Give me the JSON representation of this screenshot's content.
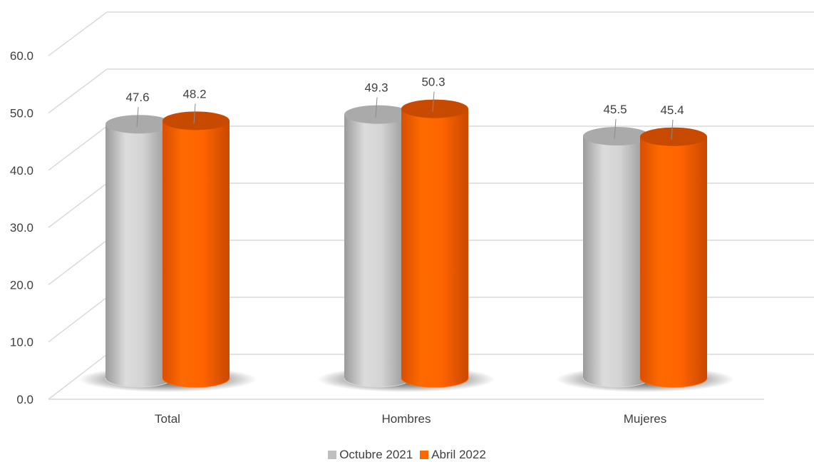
{
  "chart_data": {
    "type": "bar",
    "categories": [
      "Total",
      "Hombres",
      "Mujeres"
    ],
    "series": [
      {
        "name": "Octubre 2021",
        "values": [
          47.6,
          49.3,
          45.5
        ],
        "color": "#BFBFBF"
      },
      {
        "name": "Abril 2022",
        "values": [
          48.2,
          50.3,
          45.4
        ],
        "color": "#FF6600"
      }
    ],
    "ylim": [
      0,
      60
    ],
    "yticks": [
      "0.0",
      "10.0",
      "20.0",
      "30.0",
      "40.0",
      "50.0",
      "60.0"
    ],
    "grid": true,
    "legend_position": "bottom",
    "style": "3d-cylinder"
  }
}
